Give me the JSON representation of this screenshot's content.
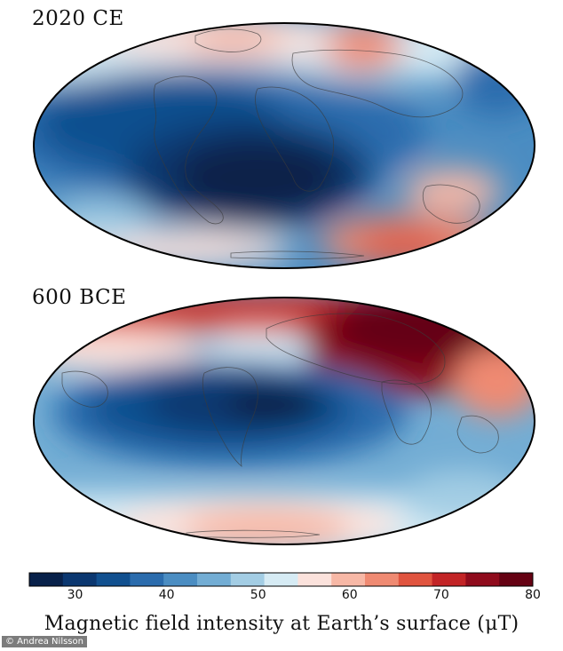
{
  "maps": [
    {
      "epoch_label": "2020 CE"
    },
    {
      "epoch_label": "600 BCE"
    }
  ],
  "colorbar": {
    "min": 25,
    "max": 80,
    "ticks": [
      "30",
      "40",
      "50",
      "60",
      "70",
      "80"
    ],
    "title": "Magnetic field intensity at Earth’s surface (μT)",
    "colors": [
      "#08214a",
      "#0b3770",
      "#11508f",
      "#2b6cad",
      "#4b8dc2",
      "#73add4",
      "#a3cde4",
      "#d6ebf4",
      "#fbe2dc",
      "#f7b8a6",
      "#ef8a72",
      "#e0543f",
      "#c22426",
      "#8f0b1c",
      "#650213"
    ]
  },
  "credit": "© Andrea Nilsson"
}
